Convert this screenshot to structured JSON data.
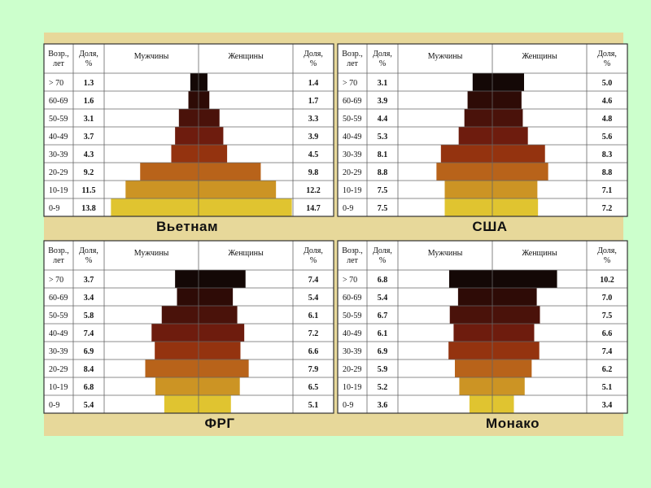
{
  "chart_data": [
    {
      "type": "bar",
      "country": "Вьетнам",
      "headers": {
        "age": [
          "Возр.,",
          "лет"
        ],
        "male_share": [
          "Доля,",
          "%"
        ],
        "male": "Мужчины",
        "female": "Женщины",
        "female_share": [
          "Доля,",
          "%"
        ]
      },
      "categories": [
        "> 70",
        "60-69",
        "50-59",
        "40-49",
        "30-39",
        "20-29",
        "10-19",
        "0-9"
      ],
      "series": [
        {
          "name": "Мужчины",
          "values": [
            1.3,
            1.6,
            3.1,
            3.7,
            4.3,
            9.2,
            11.5,
            13.8
          ]
        },
        {
          "name": "Женщины",
          "values": [
            1.4,
            1.7,
            3.3,
            3.9,
            4.5,
            9.8,
            12.2,
            14.7
          ]
        }
      ]
    },
    {
      "type": "bar",
      "country": "США",
      "headers": {
        "age": [
          "Возр.,",
          "лет"
        ],
        "male_share": [
          "Доля,",
          "%"
        ],
        "male": "Мужчины",
        "female": "Женщины",
        "female_share": [
          "Доля,",
          "%"
        ]
      },
      "categories": [
        "> 70",
        "60-69",
        "50-59",
        "40-49",
        "30-39",
        "20-29",
        "10-19",
        "0-9"
      ],
      "series": [
        {
          "name": "Мужчины",
          "values": [
            3.1,
            3.9,
            4.4,
            5.3,
            8.1,
            8.8,
            7.5,
            7.5
          ]
        },
        {
          "name": "Женщины",
          "values": [
            5.0,
            4.6,
            4.8,
            5.6,
            8.3,
            8.8,
            7.1,
            7.2
          ]
        }
      ]
    },
    {
      "type": "bar",
      "country": "ФРГ",
      "headers": {
        "age": [
          "Возр.,",
          "лет"
        ],
        "male_share": [
          "Доля,",
          "%"
        ],
        "male": "Мужчины",
        "female": "Женщины",
        "female_share": [
          "Доля,",
          "%"
        ]
      },
      "categories": [
        "> 70",
        "60-69",
        "50-59",
        "40-49",
        "30-39",
        "20-29",
        "10-19",
        "0-9"
      ],
      "series": [
        {
          "name": "Мужчины",
          "values": [
            3.7,
            3.4,
            5.8,
            7.4,
            6.9,
            8.4,
            6.8,
            5.4
          ]
        },
        {
          "name": "Женщины",
          "values": [
            7.4,
            5.4,
            6.1,
            7.2,
            6.6,
            7.9,
            6.5,
            5.1
          ]
        }
      ]
    },
    {
      "type": "bar",
      "country": "Монако",
      "headers": {
        "age": [
          "Возр.,",
          "лет"
        ],
        "male_share": [
          "Доля,",
          "%"
        ],
        "male": "Мужчины",
        "female": "Женщины",
        "female_share": [
          "Доля,",
          "%"
        ]
      },
      "categories": [
        "> 70",
        "60-69",
        "50-59",
        "40-49",
        "30-39",
        "20-29",
        "10-19",
        "0-9"
      ],
      "series": [
        {
          "name": "Мужчины",
          "values": [
            6.8,
            5.4,
            6.7,
            6.1,
            6.9,
            5.9,
            5.2,
            3.6
          ]
        },
        {
          "name": "Женщины",
          "values": [
            10.2,
            7.0,
            7.5,
            6.6,
            7.4,
            6.2,
            5.1,
            3.4
          ]
        }
      ]
    }
  ],
  "colors": {
    "bars": [
      "#140806",
      "#2e0b06",
      "#4a120a",
      "#6e1c0e",
      "#94330f",
      "#b8631a",
      "#cc9424",
      "#e0c430"
    ],
    "board": "#e7d89a",
    "page": "#ccffcc"
  }
}
